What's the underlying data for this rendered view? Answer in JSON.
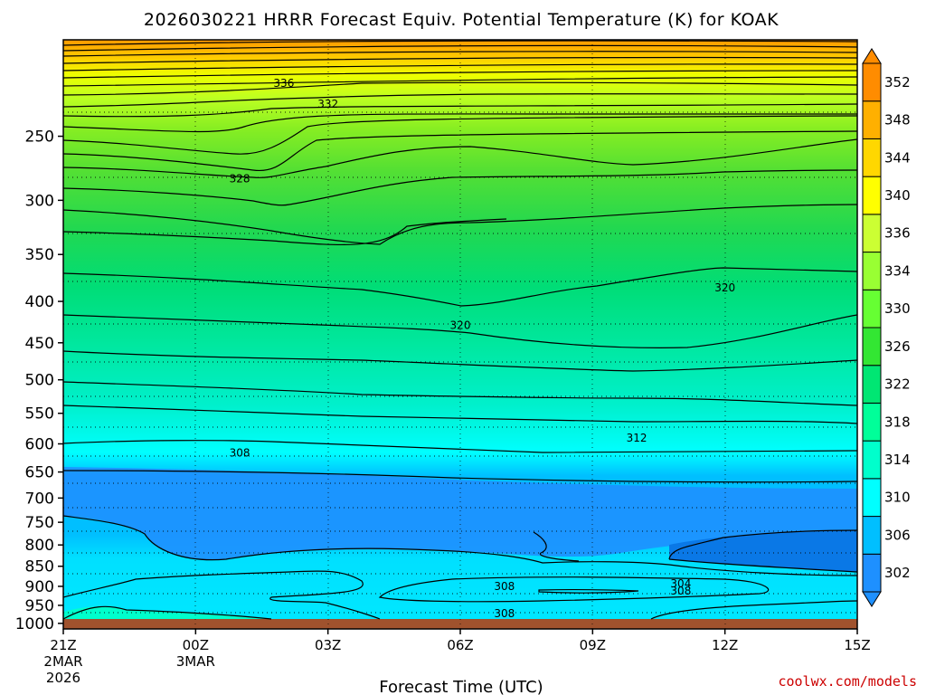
{
  "chart_data": {
    "type": "heatmap",
    "title": "2026030221 HRRR Forecast Equiv. Potential Temperature (K) for KOAK",
    "xlabel": "Forecast Time (UTC)",
    "ylabel": "",
    "credit": "coolwx.com/models",
    "x_ticks": [
      {
        "hour": 0,
        "lines": [
          "21Z",
          "2MAR",
          "2026"
        ]
      },
      {
        "hour": 3,
        "lines": [
          "00Z",
          "3MAR"
        ]
      },
      {
        "hour": 6,
        "lines": [
          "03Z"
        ]
      },
      {
        "hour": 9,
        "lines": [
          "06Z"
        ]
      },
      {
        "hour": 12,
        "lines": [
          "09Z"
        ]
      },
      {
        "hour": 15,
        "lines": [
          "12Z"
        ]
      },
      {
        "hour": 18,
        "lines": [
          "15Z"
        ]
      }
    ],
    "xlim": [
      0,
      18
    ],
    "y_ticks": [
      250,
      300,
      350,
      400,
      450,
      500,
      550,
      600,
      650,
      700,
      750,
      800,
      850,
      900,
      950,
      1000
    ],
    "ylim_hpa": [
      1016,
      190
    ],
    "colorbar": {
      "labels": [
        302,
        306,
        310,
        314,
        318,
        322,
        326,
        330,
        334,
        336,
        340,
        344,
        348,
        352
      ],
      "colors": [
        "#1e90ff",
        "#00bfff",
        "#00ffff",
        "#00ffcc",
        "#00ff99",
        "#00e673",
        "#33e633",
        "#66ff33",
        "#99ff33",
        "#ccff33",
        "#ffff00",
        "#ffd700",
        "#ffb000",
        "#ff8c00"
      ]
    },
    "contour_labels": [
      {
        "value": "336",
        "hour": 5.0,
        "hpa": 215
      },
      {
        "value": "332",
        "hour": 6.0,
        "hpa": 228
      },
      {
        "value": "328",
        "hour": 4.0,
        "hpa": 282
      },
      {
        "value": "320",
        "hour": 9.0,
        "hpa": 428
      },
      {
        "value": "320",
        "hour": 15.0,
        "hpa": 385
      },
      {
        "value": "312",
        "hour": 13.0,
        "hpa": 590
      },
      {
        "value": "308",
        "hour": 4.0,
        "hpa": 616
      },
      {
        "value": "308",
        "hour": 10.0,
        "hpa": 900
      },
      {
        "value": "308",
        "hour": 14.0,
        "hpa": 912
      },
      {
        "value": "308",
        "hour": 10.0,
        "hpa": 972
      },
      {
        "value": "304",
        "hour": 14.0,
        "hpa": 893
      }
    ]
  }
}
